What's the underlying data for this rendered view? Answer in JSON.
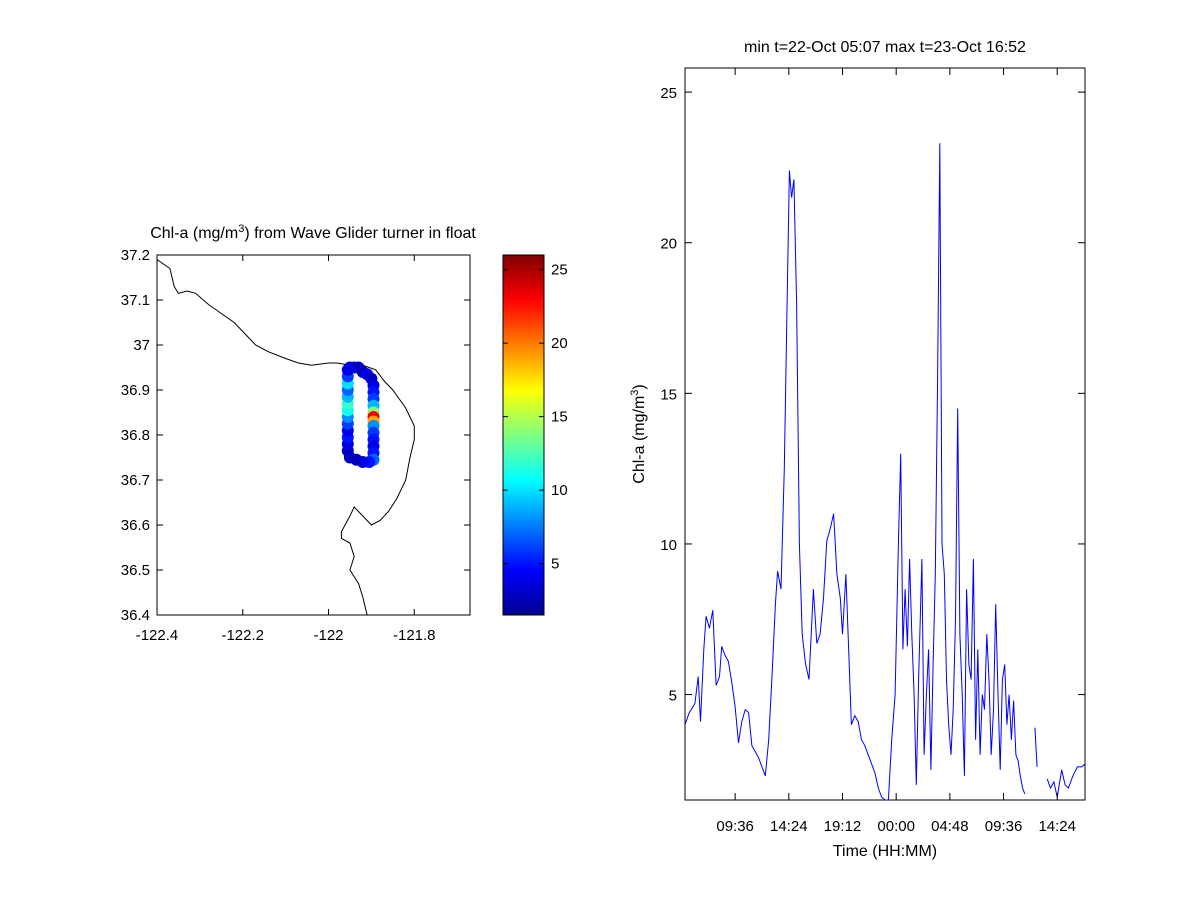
{
  "chart_data": [
    {
      "type": "scatter",
      "title": "Chl-a (mg/m",
      "title_sup": "3",
      "title_suffix": ") from Wave Glider turner in float",
      "xlim": [
        -122.4,
        -121.67
      ],
      "ylim": [
        36.4,
        37.2
      ],
      "x_ticks": [
        "-122.4",
        "-122.2",
        "-122",
        "-121.8"
      ],
      "x_tick_values": [
        -122.4,
        -122.2,
        -122.0,
        -121.8
      ],
      "y_ticks": [
        "37.2",
        "37.1",
        "37",
        "36.9",
        "36.8",
        "36.7",
        "36.6",
        "36.5",
        "36.4"
      ],
      "y_tick_values": [
        37.2,
        37.1,
        37.0,
        36.9,
        36.8,
        36.7,
        36.6,
        36.5,
        36.4
      ],
      "colorbar": {
        "range": [
          1.5,
          26
        ],
        "ticks": [
          "5",
          "10",
          "15",
          "20",
          "25"
        ],
        "tick_values": [
          5,
          10,
          15,
          20,
          25
        ],
        "colormap": "jet"
      },
      "coastline": [
        [
          -122.4,
          37.19
        ],
        [
          -122.37,
          37.17
        ],
        [
          -122.36,
          37.13
        ],
        [
          -122.35,
          37.115
        ],
        [
          -122.33,
          37.12
        ],
        [
          -122.31,
          37.115
        ],
        [
          -122.28,
          37.09
        ],
        [
          -122.25,
          37.07
        ],
        [
          -122.22,
          37.05
        ],
        [
          -122.2,
          37.03
        ],
        [
          -122.17,
          37.0
        ],
        [
          -122.14,
          36.985
        ],
        [
          -122.1,
          36.97
        ],
        [
          -122.07,
          36.96
        ],
        [
          -122.04,
          36.955
        ],
        [
          -122.0,
          36.96
        ],
        [
          -121.98,
          36.96
        ],
        [
          -121.95,
          36.955
        ],
        [
          -121.92,
          36.955
        ],
        [
          -121.89,
          36.945
        ],
        [
          -121.87,
          36.92
        ],
        [
          -121.85,
          36.9
        ],
        [
          -121.82,
          36.86
        ],
        [
          -121.8,
          36.82
        ],
        [
          -121.8,
          36.79
        ],
        [
          -121.81,
          36.75
        ],
        [
          -121.82,
          36.7
        ],
        [
          -121.84,
          36.66
        ],
        [
          -121.86,
          36.63
        ],
        [
          -121.88,
          36.61
        ],
        [
          -121.9,
          36.6
        ],
        [
          -121.92,
          36.62
        ],
        [
          -121.94,
          36.64
        ],
        [
          -121.95,
          36.62
        ],
        [
          -121.97,
          36.585
        ],
        [
          -121.97,
          36.57
        ],
        [
          -121.95,
          36.56
        ],
        [
          -121.94,
          36.53
        ],
        [
          -121.95,
          36.5
        ],
        [
          -121.93,
          36.47
        ],
        [
          -121.92,
          36.44
        ],
        [
          -121.91,
          36.4
        ]
      ],
      "track": [
        {
          "x": -121.95,
          "y": 36.95,
          "v": 3
        },
        {
          "x": -121.94,
          "y": 36.95,
          "v": 4
        },
        {
          "x": -121.93,
          "y": 36.95,
          "v": 3
        },
        {
          "x": -121.92,
          "y": 36.94,
          "v": 3
        },
        {
          "x": -121.91,
          "y": 36.935,
          "v": 4
        },
        {
          "x": -121.9,
          "y": 36.925,
          "v": 3
        },
        {
          "x": -121.895,
          "y": 36.91,
          "v": 4
        },
        {
          "x": -121.895,
          "y": 36.895,
          "v": 5
        },
        {
          "x": -121.895,
          "y": 36.88,
          "v": 6
        },
        {
          "x": -121.895,
          "y": 36.865,
          "v": 9
        },
        {
          "x": -121.895,
          "y": 36.85,
          "v": 14
        },
        {
          "x": -121.895,
          "y": 36.84,
          "v": 23
        },
        {
          "x": -121.895,
          "y": 36.83,
          "v": 19
        },
        {
          "x": -121.895,
          "y": 36.82,
          "v": 8
        },
        {
          "x": -121.895,
          "y": 36.805,
          "v": 6
        },
        {
          "x": -121.895,
          "y": 36.79,
          "v": 5
        },
        {
          "x": -121.895,
          "y": 36.775,
          "v": 4
        },
        {
          "x": -121.895,
          "y": 36.76,
          "v": 5
        },
        {
          "x": -121.895,
          "y": 36.745,
          "v": 7
        },
        {
          "x": -121.905,
          "y": 36.74,
          "v": 5
        },
        {
          "x": -121.92,
          "y": 36.74,
          "v": 4
        },
        {
          "x": -121.935,
          "y": 36.745,
          "v": 3
        },
        {
          "x": -121.95,
          "y": 36.75,
          "v": 3
        },
        {
          "x": -121.955,
          "y": 36.765,
          "v": 3
        },
        {
          "x": -121.955,
          "y": 36.78,
          "v": 4
        },
        {
          "x": -121.955,
          "y": 36.795,
          "v": 5
        },
        {
          "x": -121.955,
          "y": 36.81,
          "v": 4
        },
        {
          "x": -121.955,
          "y": 36.825,
          "v": 6
        },
        {
          "x": -121.955,
          "y": 36.84,
          "v": 8
        },
        {
          "x": -121.955,
          "y": 36.855,
          "v": 11
        },
        {
          "x": -121.955,
          "y": 36.87,
          "v": 12
        },
        {
          "x": -121.955,
          "y": 36.885,
          "v": 9
        },
        {
          "x": -121.955,
          "y": 36.9,
          "v": 7
        },
        {
          "x": -121.955,
          "y": 36.915,
          "v": 10
        },
        {
          "x": -121.955,
          "y": 36.93,
          "v": 6
        },
        {
          "x": -121.955,
          "y": 36.945,
          "v": 4
        }
      ]
    },
    {
      "type": "line",
      "title": "min t=22-Oct 05:07 max t=23-Oct 16:52",
      "xlabel": "Time (HH:MM)",
      "ylabel": "Chl-a (mg/m",
      "ylabel_sup": "3",
      "ylabel_suffix": ")",
      "ylim": [
        1.5,
        25.8
      ],
      "y_ticks": [
        "5",
        "10",
        "15",
        "20",
        "25"
      ],
      "y_tick_values": [
        5,
        10,
        15,
        20,
        25
      ],
      "x_unit": "hours since 22-Oct 00:00",
      "xlim": [
        5.117,
        40.883
      ],
      "x_ticks": [
        "09:36",
        "14:24",
        "19:12",
        "00:00",
        "04:48",
        "09:36",
        "14:24"
      ],
      "x_tick_values": [
        9.6,
        14.4,
        19.2,
        24.0,
        28.8,
        33.6,
        38.4
      ],
      "color": "#0000ff",
      "points": [
        [
          5.12,
          4.0
        ],
        [
          5.5,
          4.4
        ],
        [
          6.0,
          4.7
        ],
        [
          6.3,
          5.6
        ],
        [
          6.5,
          4.1
        ],
        [
          6.8,
          6.5
        ],
        [
          7.0,
          7.6
        ],
        [
          7.3,
          7.2
        ],
        [
          7.6,
          7.8
        ],
        [
          7.9,
          5.3
        ],
        [
          8.2,
          5.6
        ],
        [
          8.4,
          6.6
        ],
        [
          8.7,
          6.3
        ],
        [
          9.0,
          6.1
        ],
        [
          9.3,
          5.4
        ],
        [
          9.6,
          4.6
        ],
        [
          9.9,
          3.4
        ],
        [
          10.2,
          4.1
        ],
        [
          10.5,
          4.5
        ],
        [
          10.8,
          4.4
        ],
        [
          11.1,
          3.3
        ],
        [
          11.4,
          3.1
        ],
        [
          11.7,
          2.9
        ],
        [
          12.0,
          2.6
        ],
        [
          12.3,
          2.3
        ],
        [
          12.6,
          3.5
        ],
        [
          12.9,
          5.6
        ],
        [
          13.2,
          8.0
        ],
        [
          13.4,
          9.1
        ],
        [
          13.7,
          8.5
        ],
        [
          14.0,
          12.5
        ],
        [
          14.25,
          18.0
        ],
        [
          14.45,
          22.4
        ],
        [
          14.65,
          21.5
        ],
        [
          14.85,
          22.1
        ],
        [
          15.1,
          18.0
        ],
        [
          15.35,
          10.0
        ],
        [
          15.6,
          7.0
        ],
        [
          15.9,
          6.0
        ],
        [
          16.2,
          5.5
        ],
        [
          16.6,
          8.5
        ],
        [
          16.9,
          6.7
        ],
        [
          17.2,
          7.0
        ],
        [
          17.5,
          8.2
        ],
        [
          17.8,
          10.1
        ],
        [
          18.1,
          10.5
        ],
        [
          18.4,
          11.0
        ],
        [
          18.7,
          9.0
        ],
        [
          19.0,
          8.2
        ],
        [
          19.2,
          7.0
        ],
        [
          19.5,
          9.0
        ],
        [
          19.8,
          6.0
        ],
        [
          20.0,
          4.0
        ],
        [
          20.3,
          4.3
        ],
        [
          20.6,
          4.1
        ],
        [
          20.9,
          3.5
        ],
        [
          21.2,
          3.3
        ],
        [
          21.5,
          3.0
        ],
        [
          21.8,
          2.7
        ],
        [
          22.1,
          2.4
        ],
        [
          22.4,
          1.9
        ],
        [
          22.7,
          1.6
        ],
        [
          23.0,
          1.5
        ],
        [
          23.3,
          1.5
        ],
        [
          23.6,
          3.5
        ],
        [
          23.9,
          5.0
        ],
        [
          24.2,
          10.0
        ],
        [
          24.4,
          13.0
        ],
        [
          24.6,
          6.5
        ],
        [
          24.8,
          8.5
        ],
        [
          25.0,
          6.6
        ],
        [
          25.2,
          9.5
        ],
        [
          25.4,
          7.0
        ],
        [
          25.6,
          5.0
        ],
        [
          25.8,
          2.0
        ],
        [
          26.0,
          5.5
        ],
        [
          26.3,
          9.5
        ],
        [
          26.5,
          3.0
        ],
        [
          26.7,
          5.0
        ],
        [
          26.9,
          6.5
        ],
        [
          27.1,
          2.5
        ],
        [
          27.3,
          6.0
        ],
        [
          27.5,
          9.0
        ],
        [
          27.7,
          15.5
        ],
        [
          27.9,
          23.3
        ],
        [
          28.1,
          10.0
        ],
        [
          28.3,
          9.0
        ],
        [
          28.5,
          5.5
        ],
        [
          28.7,
          4.0
        ],
        [
          28.9,
          3.0
        ],
        [
          29.1,
          4.5
        ],
        [
          29.3,
          7.5
        ],
        [
          29.5,
          14.5
        ],
        [
          29.7,
          7.0
        ],
        [
          29.9,
          5.0
        ],
        [
          30.1,
          2.3
        ],
        [
          30.3,
          8.5
        ],
        [
          30.5,
          6.0
        ],
        [
          30.7,
          5.5
        ],
        [
          30.9,
          9.5
        ],
        [
          31.1,
          3.5
        ],
        [
          31.3,
          6.5
        ],
        [
          31.5,
          3.0
        ],
        [
          31.7,
          5.0
        ],
        [
          31.9,
          4.5
        ],
        [
          32.1,
          7.0
        ],
        [
          32.3,
          5.5
        ],
        [
          32.5,
          3.0
        ],
        [
          32.7,
          4.5
        ],
        [
          32.9,
          8.0
        ],
        [
          33.1,
          5.0
        ],
        [
          33.3,
          2.5
        ],
        [
          33.5,
          5.5
        ],
        [
          33.7,
          6.0
        ],
        [
          33.9,
          4.0
        ],
        [
          34.1,
          5.0
        ],
        [
          34.3,
          3.5
        ],
        [
          34.5,
          4.8
        ],
        [
          34.7,
          3.0
        ],
        [
          34.9,
          2.8
        ],
        [
          35.1,
          2.3
        ],
        [
          35.3,
          1.9
        ],
        [
          35.5,
          1.7
        ]
      ],
      "points2": [
        [
          36.4,
          3.9
        ],
        [
          36.6,
          2.6
        ]
      ],
      "points3": [
        [
          37.5,
          2.2
        ],
        [
          37.8,
          1.9
        ],
        [
          38.1,
          2.1
        ],
        [
          38.4,
          1.6
        ],
        [
          38.8,
          2.5
        ],
        [
          39.1,
          2.0
        ],
        [
          39.4,
          1.9
        ],
        [
          39.8,
          2.3
        ],
        [
          40.2,
          2.6
        ],
        [
          40.6,
          2.6
        ],
        [
          40.88,
          2.7
        ]
      ]
    }
  ]
}
